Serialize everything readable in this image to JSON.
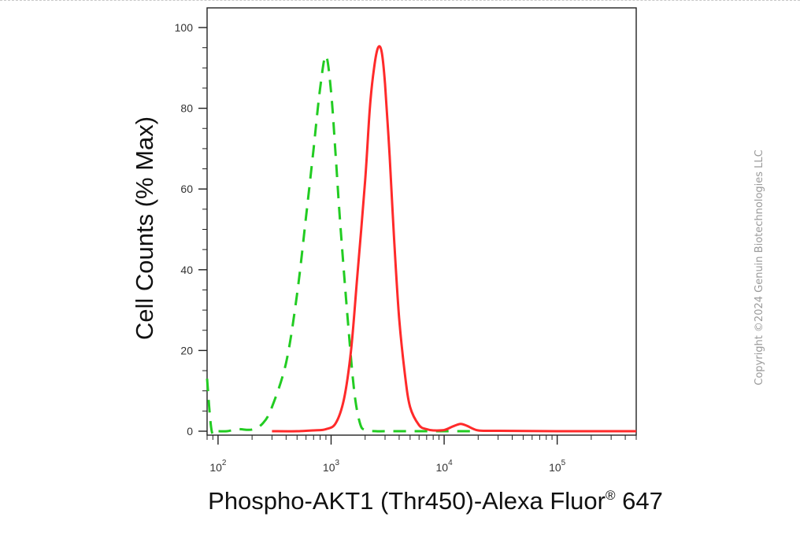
{
  "chart_data": {
    "type": "line",
    "title": "",
    "xlabel": "Phospho-AKT1 (Thr450)-Alexa Fluor",
    "xlabel_superscript": "®",
    "xlabel_suffix": " 647",
    "ylabel": "Cell Counts (% Max)",
    "x_scale": "log",
    "xlim": [
      80,
      500000
    ],
    "ylim": [
      0,
      100
    ],
    "x_ticks": [
      {
        "value": 100,
        "base": "10",
        "exp": "2"
      },
      {
        "value": 1000,
        "base": "10",
        "exp": "3"
      },
      {
        "value": 10000,
        "base": "10",
        "exp": "4"
      },
      {
        "value": 100000,
        "base": "10",
        "exp": "5"
      }
    ],
    "y_ticks": [
      0,
      20,
      40,
      60,
      80,
      100
    ],
    "grid": false,
    "legend": "none",
    "series": [
      {
        "color": "#22cc22",
        "dash": "dashed",
        "x": [
          80,
          88,
          100,
          120,
          150,
          200,
          250,
          300,
          400,
          500,
          600,
          700,
          800,
          900,
          1000,
          1100,
          1200,
          1400,
          1600,
          1800,
          2000,
          2500,
          3000,
          5000,
          10000,
          20000
        ],
        "y": [
          13,
          0,
          0,
          0,
          0.5,
          0.4,
          2,
          6,
          17,
          34,
          53,
          70,
          85,
          93,
          84,
          68,
          52,
          28,
          10,
          2,
          0.3,
          0,
          0,
          0,
          0,
          0
        ]
      },
      {
        "color": "#ff2a2a",
        "dash": "solid",
        "x": [
          300,
          500,
          700,
          900,
          1100,
          1300,
          1500,
          1700,
          2000,
          2200,
          2400,
          2600,
          2800,
          3000,
          3300,
          3600,
          4000,
          4500,
          5000,
          6000,
          7000,
          8000,
          10000,
          12000,
          14000,
          16000,
          20000,
          30000,
          100000,
          500000
        ],
        "y": [
          0,
          0,
          0.2,
          0.5,
          2,
          8,
          20,
          38,
          62,
          80,
          90,
          95,
          94,
          86,
          68,
          48,
          28,
          14,
          6,
          1.5,
          0.5,
          0.2,
          0.3,
          1.2,
          1.8,
          1.3,
          0.2,
          0.1,
          0,
          0
        ]
      }
    ]
  },
  "copyright_text": "Copyright ©2024 Genuin Biotechnologies LLC"
}
